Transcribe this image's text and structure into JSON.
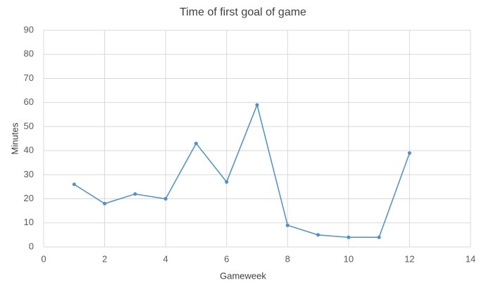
{
  "chart_data": {
    "type": "line",
    "title": "Time of first goal of game",
    "x_label": "Gameweek",
    "y_label": "Minutes",
    "x": [
      1,
      2,
      3,
      4,
      5,
      6,
      7,
      8,
      9,
      10,
      11,
      12
    ],
    "values": [
      26,
      18,
      22,
      20,
      43,
      27,
      59,
      9,
      5,
      4,
      4,
      39
    ],
    "color": "#4a8fd2",
    "xlim": [
      0,
      14
    ],
    "xticks": [
      0,
      2,
      4,
      6,
      8,
      10,
      12,
      14
    ],
    "ylim": [
      0,
      90
    ],
    "yticks": [
      0,
      10,
      20,
      30,
      40,
      50,
      60,
      70,
      80,
      90
    ],
    "grid": true
  }
}
